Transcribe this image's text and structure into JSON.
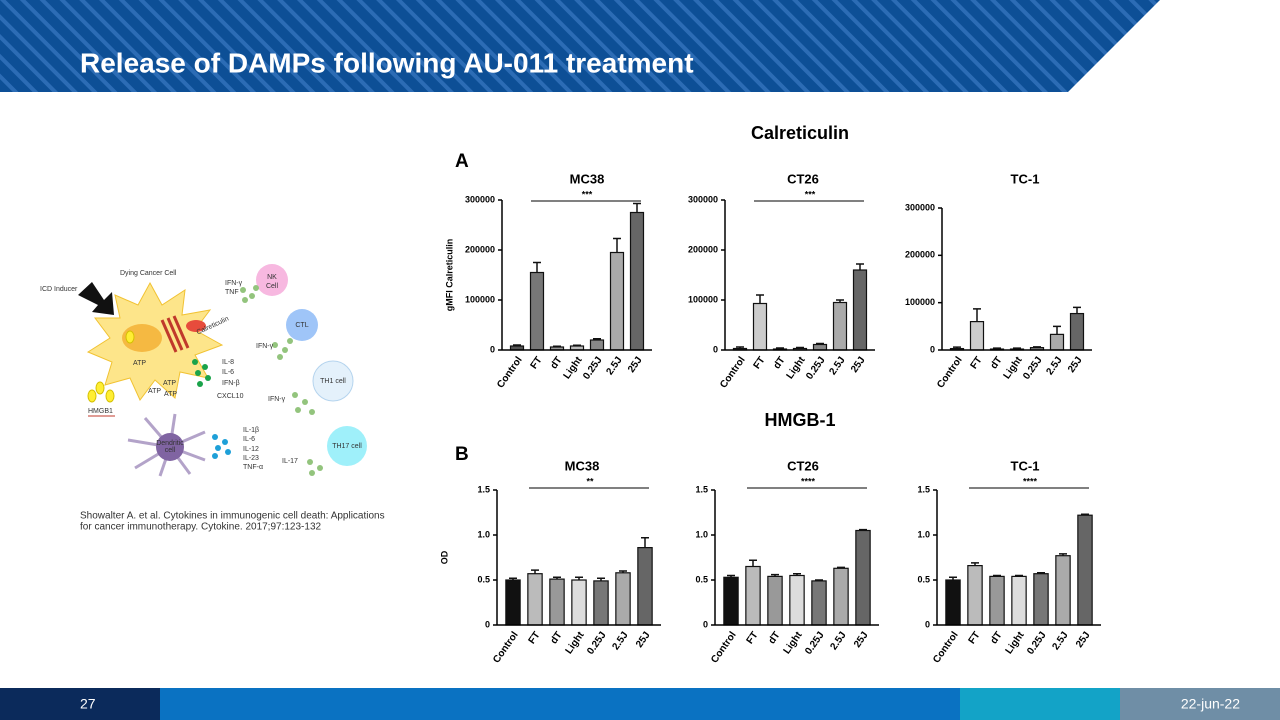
{
  "header": {
    "title": "Release of DAMPs following AU-011 treatment"
  },
  "figure": {
    "panel_a_title": "Calreticulin",
    "panel_a_letter": "A",
    "panel_b_title": "HMGB-1",
    "panel_b_letter": "B"
  },
  "chart_data": [
    {
      "type": "bar",
      "title": "MC38",
      "ylabel": "gMFI Calreticulin",
      "significance": "***",
      "categories": [
        "Control",
        "FT",
        "dT",
        "Light",
        "0.25J",
        "2.5J",
        "25J"
      ],
      "values": [
        8000,
        155000,
        6000,
        8000,
        20000,
        195000,
        275000
      ],
      "errors": [
        2000,
        20000,
        1500,
        1500,
        2500,
        28000,
        18000
      ],
      "colors": [
        "#555555",
        "#777777",
        "#999999",
        "#bbbbbb",
        "#888888",
        "#aaaaaa",
        "#666666"
      ],
      "ylim": [
        0,
        300000
      ],
      "yticks": [
        0,
        100000,
        200000,
        300000
      ]
    },
    {
      "type": "bar",
      "title": "CT26",
      "significance": "***",
      "categories": [
        "Control",
        "FT",
        "dT",
        "Light",
        "0.25J",
        "2.5J",
        "25J"
      ],
      "values": [
        3000,
        93000,
        2000,
        3000,
        11000,
        95000,
        160000
      ],
      "errors": [
        3000,
        17000,
        2000,
        2000,
        2000,
        5000,
        12000
      ],
      "colors": [
        "#555555",
        "#cccccc",
        "#999999",
        "#bbbbbb",
        "#888888",
        "#aaaaaa",
        "#666666"
      ],
      "ylim": [
        0,
        300000
      ],
      "yticks": [
        0,
        100000,
        200000,
        300000
      ]
    },
    {
      "type": "bar",
      "title": "TC-1",
      "categories": [
        "Control",
        "FT",
        "dT",
        "Light",
        "0.25J",
        "2.5J",
        "25J"
      ],
      "values": [
        3000,
        60000,
        2000,
        2000,
        5000,
        33000,
        77000
      ],
      "errors": [
        3000,
        27000,
        2000,
        2000,
        1500,
        17000,
        13000
      ],
      "colors": [
        "#555555",
        "#cccccc",
        "#999999",
        "#bbbbbb",
        "#888888",
        "#aaaaaa",
        "#666666"
      ],
      "ylim": [
        0,
        300000
      ],
      "yticks": [
        0,
        100000,
        200000,
        300000
      ]
    },
    {
      "type": "bar",
      "title": "MC38",
      "ylabel": "OD",
      "significance": "**",
      "categories": [
        "Control",
        "FT",
        "dT",
        "Light",
        "0.25J",
        "2.5J",
        "25J"
      ],
      "values": [
        0.5,
        0.57,
        0.51,
        0.5,
        0.49,
        0.58,
        0.86
      ],
      "errors": [
        0.02,
        0.04,
        0.02,
        0.03,
        0.03,
        0.02,
        0.11
      ],
      "colors": [
        "#111111",
        "#bbbbbb",
        "#999999",
        "#dddddd",
        "#777777",
        "#aaaaaa",
        "#666666"
      ],
      "ylim": [
        0,
        1.5
      ],
      "yticks": [
        0,
        0.5,
        {
          "value": 1,
          "label": "1.0"
        },
        1.5
      ]
    },
    {
      "type": "bar",
      "title": "CT26",
      "significance": "****",
      "categories": [
        "Control",
        "FT",
        "dT",
        "Light",
        "0.25J",
        "2.5J",
        "25J"
      ],
      "values": [
        0.53,
        0.65,
        0.54,
        0.55,
        0.49,
        0.63,
        1.05
      ],
      "errors": [
        0.02,
        0.07,
        0.02,
        0.02,
        0.01,
        0.01,
        0.01
      ],
      "colors": [
        "#111111",
        "#bbbbbb",
        "#999999",
        "#dddddd",
        "#777777",
        "#aaaaaa",
        "#666666"
      ],
      "ylim": [
        0,
        1.5
      ],
      "yticks": [
        0,
        0.5,
        {
          "value": 1,
          "label": "1.0"
        },
        1.5
      ]
    },
    {
      "type": "bar",
      "title": "TC-1",
      "significance": "****",
      "categories": [
        "Control",
        "FT",
        "dT",
        "Light",
        "0.25J",
        "2.5J",
        "25J"
      ],
      "values": [
        0.5,
        0.66,
        0.54,
        0.54,
        0.57,
        0.77,
        1.22
      ],
      "errors": [
        0.03,
        0.03,
        0.01,
        0.01,
        0.01,
        0.02,
        0.01
      ],
      "colors": [
        "#111111",
        "#bbbbbb",
        "#999999",
        "#dddddd",
        "#777777",
        "#aaaaaa",
        "#666666"
      ],
      "ylim": [
        0,
        1.5
      ],
      "yticks": [
        0,
        0.5,
        {
          "value": 1,
          "label": "1.0"
        },
        1.5
      ]
    }
  ],
  "diagram": {
    "labels": [
      "Dying Cancer Cell",
      "ICD Inducer",
      "Calreticulin",
      "ATP",
      "ATP",
      "ATP",
      "ATP",
      "HMGB1",
      "IFN-γ",
      "TNF",
      "NK",
      "Cell",
      "CTL",
      "IFN-γ",
      "IL-8",
      "IL-6",
      "IFN-β",
      "CXCL10",
      "TH1 cell",
      "IFN-γ",
      "Dendritic",
      "cell",
      "IL-1β",
      "IL-6",
      "IL-12",
      "IL-23",
      "TNF-α",
      "TH17 cell",
      "IL-17"
    ]
  },
  "citation": [
    "Showalter A. et al. Cytokines in immunogenic cell death: Applications",
    "for cancer immunotherapy. Cytokine. 2017;97:123-132"
  ],
  "footer": {
    "page": "27",
    "date": "22-jun-22"
  }
}
